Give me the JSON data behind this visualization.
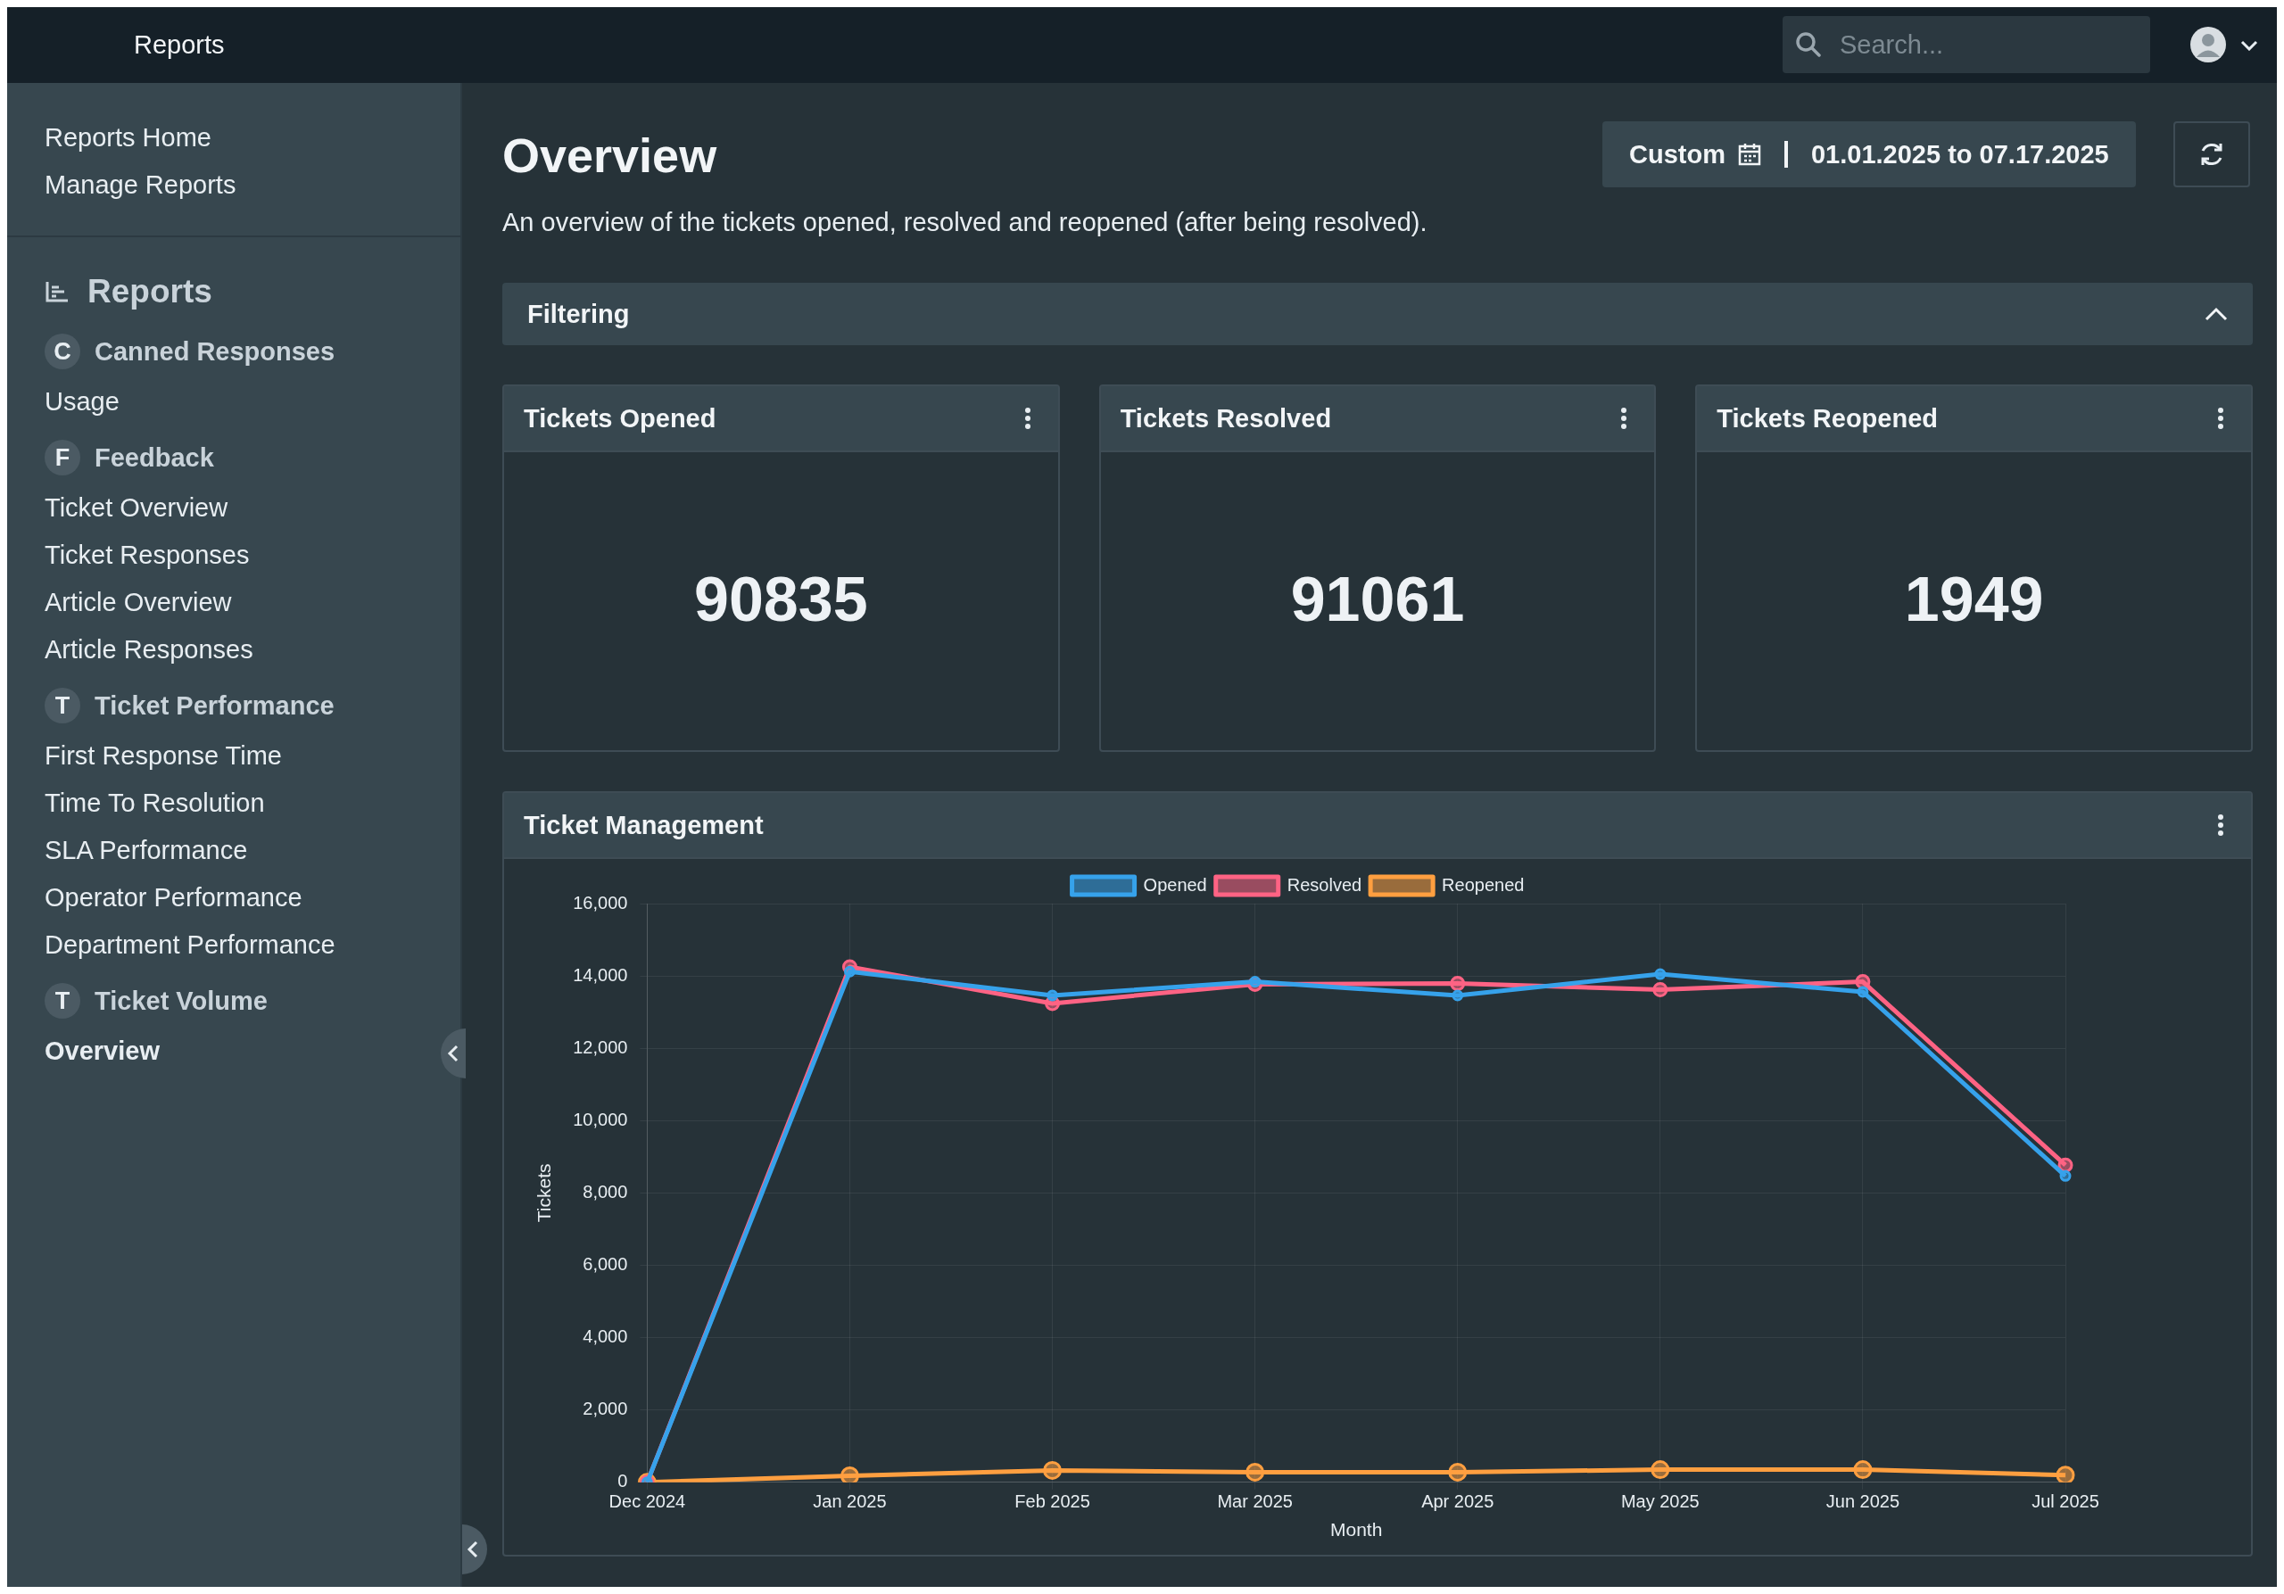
{
  "chart_data": [
    {
      "type": "other",
      "title": "Overview",
      "subtitle": "An overview of the tickets opened, resolved and reopened (after being resolved).",
      "annotations": [
        "Reports",
        "Search...",
        "Reports Home",
        "Manage Reports",
        "Reports",
        "C",
        "Canned Responses",
        "Usage",
        "F",
        "Feedback",
        "Ticket Overview",
        "Ticket Responses",
        "Article Overview",
        "Article Responses",
        "T",
        "Ticket Performance",
        "First Response Time",
        "Time To Resolution",
        "SLA Performance",
        "Operator Performance",
        "Department Performance",
        "T",
        "Ticket Volume",
        "Overview",
        "Custom",
        "01.01.2025 to 07.17.2025",
        "Filtering"
      ]
    },
    {
      "type": "other",
      "title": "Tickets Opened",
      "annotations": [
        "90835"
      ]
    },
    {
      "type": "other",
      "title": "Tickets Resolved",
      "annotations": [
        "91061"
      ]
    },
    {
      "type": "other",
      "title": "Tickets Reopened",
      "annotations": [
        "1949"
      ]
    },
    {
      "type": "line",
      "title": "Ticket Management",
      "xlabel": "Month",
      "ylabel": "Tickets",
      "categories": [
        "Dec 2024",
        "Jan 2025",
        "Feb 2025",
        "Mar 2025",
        "Apr 2025",
        "May 2025",
        "Jun 2025",
        "Jul 2025"
      ],
      "series": [
        {
          "name": "Opened",
          "color": "#36a2eb",
          "values": [
            0,
            14120,
            13460,
            13840,
            13460,
            14050,
            13560,
            8470
          ]
        },
        {
          "name": "Resolved",
          "color": "#ff6384",
          "values": [
            0,
            14250,
            13240,
            13770,
            13790,
            13620,
            13840,
            8770
          ]
        },
        {
          "name": "Reopened",
          "color": "#ff9f40",
          "values": [
            0,
            180,
            330,
            280,
            280,
            350,
            350,
            200
          ]
        }
      ],
      "ylim": [
        0,
        16000
      ],
      "yticks": [
        0,
        {
          "value": 2000,
          "label": "2,000"
        },
        {
          "value": 4000,
          "label": "4,000"
        },
        {
          "value": 6000,
          "label": "6,000"
        },
        {
          "value": 8000,
          "label": "8,000"
        },
        {
          "value": 10000,
          "label": "10,000"
        },
        {
          "value": 12000,
          "label": "12,000"
        },
        {
          "value": 14000,
          "label": "14,000"
        },
        {
          "value": 16000,
          "label": "16,000"
        }
      ],
      "grid": true,
      "legend": "top",
      "marker": "circle",
      "line_style": "solid"
    }
  ]
}
